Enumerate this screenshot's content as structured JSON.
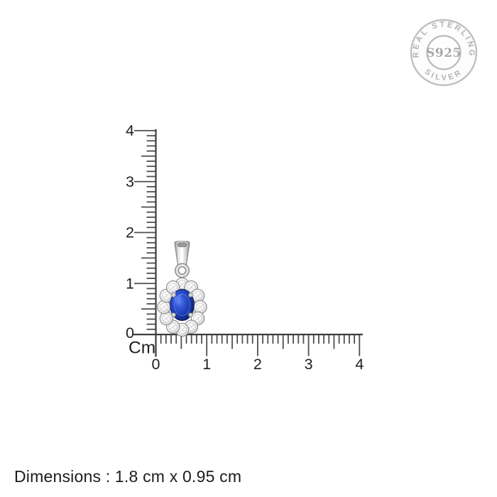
{
  "badge": {
    "arc_top": "REAL STERLING",
    "arc_bottom": "SILVER",
    "center": "S925",
    "color": "#b2b2b2"
  },
  "ruler": {
    "unit_label": "Cm",
    "vertical_labels": [
      "4",
      "3",
      "2",
      "1",
      "0"
    ],
    "horizontal_labels": [
      "0",
      "1",
      "2",
      "3",
      "4"
    ],
    "minor_ticks_per_cm": 10,
    "line_color": "#3d3d3d",
    "tick_color": "#4f4f4f",
    "label_color": "#1f1f1f"
  },
  "product": {
    "name": "blue-stone-halo-silver-pendant",
    "stone_color": "#1c3cb2",
    "metal_color": "#c9c9c9",
    "cz_color": "#f4f4f4"
  },
  "caption": {
    "text": "Dimensions : 1.8 cm x 0.95 cm"
  }
}
